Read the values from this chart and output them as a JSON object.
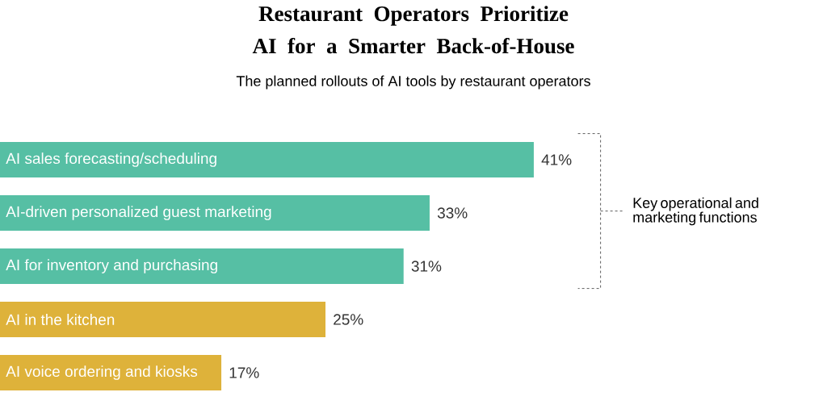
{
  "chart_data": {
    "type": "bar",
    "orientation": "horizontal",
    "title": "Restaurant Operators Prioritize AI for a Smarter Back-of-House",
    "subtitle": "The planned rollouts of AI tools by restaurant operators",
    "categories": [
      "AI sales forecasting/scheduling",
      "AI-driven personalized guest marketing",
      "AI for inventory and purchasing",
      "AI in the kitchen",
      "AI voice ordering and kiosks"
    ],
    "values": [
      41,
      33,
      31,
      25,
      17
    ],
    "colors": [
      "#56bfa4",
      "#56bfa4",
      "#56bfa4",
      "#deb23a",
      "#deb23a"
    ],
    "value_labels": [
      "41%",
      "33%",
      "31%",
      "25%",
      "17%"
    ],
    "annotations": [
      "Key operational and marketing functions"
    ]
  }
}
